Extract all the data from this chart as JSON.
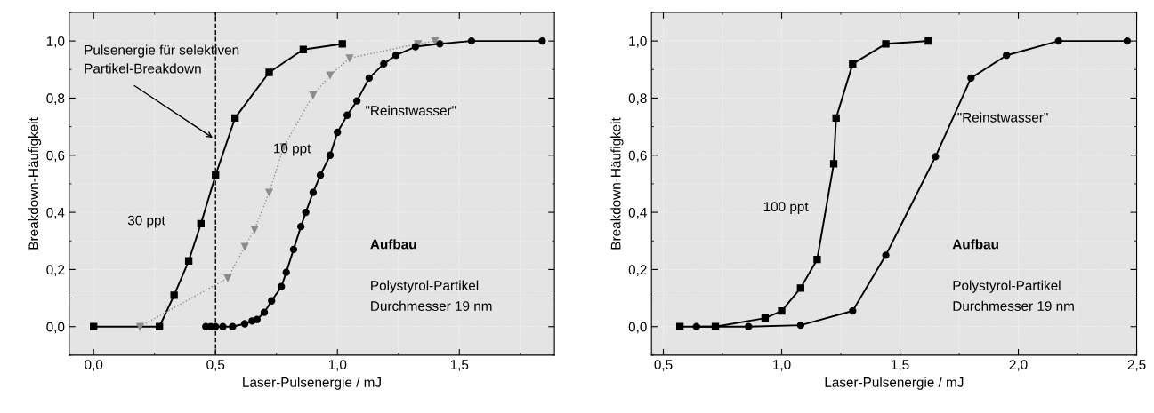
{
  "chart_data": [
    {
      "type": "line",
      "xlabel": "Laser-Pulsenergie / mJ",
      "ylabel": "Breakdown-Häufigkeit",
      "xlim": [
        -0.1,
        1.89
      ],
      "ylim": [
        -0.1,
        1.1
      ],
      "xticks": [
        {
          "value": 0.0,
          "label": "0,0"
        },
        {
          "value": 0.5,
          "label": "0,5"
        },
        {
          "value": 1.0,
          "label": "1,0"
        },
        {
          "value": 1.5,
          "label": "1,5"
        }
      ],
      "yticks": [
        {
          "value": 0.0,
          "label": "0,0"
        },
        {
          "value": 0.2,
          "label": "0,2"
        },
        {
          "value": 0.4,
          "label": "0,4"
        },
        {
          "value": 0.6,
          "label": "0,6"
        },
        {
          "value": 0.8,
          "label": "0,8"
        },
        {
          "value": 1.0,
          "label": "1,0"
        }
      ],
      "grid": true,
      "legend": false,
      "series": [
        {
          "color": "#000000",
          "marker": "square",
          "line_style": "solid",
          "x": [
            0.0,
            0.27,
            0.33,
            0.39,
            0.44,
            0.5,
            0.58,
            0.72,
            0.86,
            1.02
          ],
          "values": [
            0.0,
            0.0,
            0.11,
            0.23,
            0.36,
            0.53,
            0.73,
            0.89,
            0.97,
            0.99
          ]
        },
        {
          "color": "#8c8c8c",
          "marker": "triangle",
          "line_style": "dotted",
          "x": [
            0.19,
            0.55,
            0.62,
            0.66,
            0.72,
            0.78,
            0.9,
            0.97,
            1.05,
            1.33,
            1.4
          ],
          "values": [
            0.0,
            0.17,
            0.28,
            0.34,
            0.47,
            0.63,
            0.81,
            0.88,
            0.94,
            0.99,
            1.0
          ]
        },
        {
          "color": "#000000",
          "marker": "circle",
          "line_style": "solid",
          "x": [
            0.46,
            0.48,
            0.5,
            0.53,
            0.57,
            0.62,
            0.65,
            0.67,
            0.7,
            0.73,
            0.77,
            0.79,
            0.82,
            0.85,
            0.87,
            0.9,
            0.93,
            0.97,
            1.0,
            1.04,
            1.08,
            1.13,
            1.19,
            1.24,
            1.32,
            1.42,
            1.55,
            1.84
          ],
          "values": [
            0.0,
            0.0,
            0.0,
            0.0,
            0.0,
            0.01,
            0.02,
            0.025,
            0.05,
            0.09,
            0.14,
            0.19,
            0.27,
            0.35,
            0.4,
            0.47,
            0.53,
            0.6,
            0.68,
            0.74,
            0.79,
            0.87,
            0.92,
            0.95,
            0.98,
            0.99,
            1.0,
            1.0
          ]
        }
      ],
      "ref_lines": [
        {
          "axis": "x",
          "value": 0.5,
          "line_style": "dashed",
          "color": "#000000"
        }
      ],
      "annotations": [
        "Pulsenergie für selektiven\nPartikel-Breakdown",
        "30 ppt",
        "10 ppt",
        "\"Reinstwasser\"",
        "Aufbau",
        "Polystyrol-Partikel",
        "Durchmesser 19 nm"
      ]
    },
    {
      "type": "line",
      "xlabel": "Laser-Pulsenergie / mJ",
      "ylabel": "Breakdown-Häufigkeit",
      "xlim": [
        0.45,
        2.5
      ],
      "ylim": [
        -0.1,
        1.1
      ],
      "xticks": [
        {
          "value": 0.5,
          "label": "0,5"
        },
        {
          "value": 1.0,
          "label": "1,0"
        },
        {
          "value": 1.5,
          "label": "1,5"
        },
        {
          "value": 2.0,
          "label": "2,0"
        },
        {
          "value": 2.5,
          "label": "2,5"
        }
      ],
      "yticks": [
        {
          "value": 0.0,
          "label": "0,0"
        },
        {
          "value": 0.2,
          "label": "0,2"
        },
        {
          "value": 0.4,
          "label": "0,4"
        },
        {
          "value": 0.6,
          "label": "0,6"
        },
        {
          "value": 0.8,
          "label": "0,8"
        },
        {
          "value": 1.0,
          "label": "1,0"
        }
      ],
      "grid": true,
      "legend": false,
      "series": [
        {
          "color": "#000000",
          "marker": "square",
          "line_style": "solid",
          "x": [
            0.57,
            0.72,
            0.93,
            1.0,
            1.08,
            1.15,
            1.22,
            1.23,
            1.3,
            1.44,
            1.62
          ],
          "values": [
            0.0,
            0.0,
            0.03,
            0.055,
            0.135,
            0.235,
            0.57,
            0.73,
            0.92,
            0.99,
            1.0
          ]
        },
        {
          "color": "#000000",
          "marker": "circle",
          "line_style": "solid",
          "x": [
            0.64,
            0.86,
            1.08,
            1.3,
            1.44,
            1.65,
            1.8,
            1.95,
            2.17,
            2.46
          ],
          "values": [
            0.0,
            0.0,
            0.005,
            0.055,
            0.25,
            0.595,
            0.87,
            0.95,
            1.0,
            1.0
          ]
        }
      ],
      "annotations": [
        "100 ppt",
        "\"Reinstwasser\"",
        "Aufbau",
        "Polystyrol-Partikel",
        "Durchmesser 19 nm"
      ]
    }
  ]
}
